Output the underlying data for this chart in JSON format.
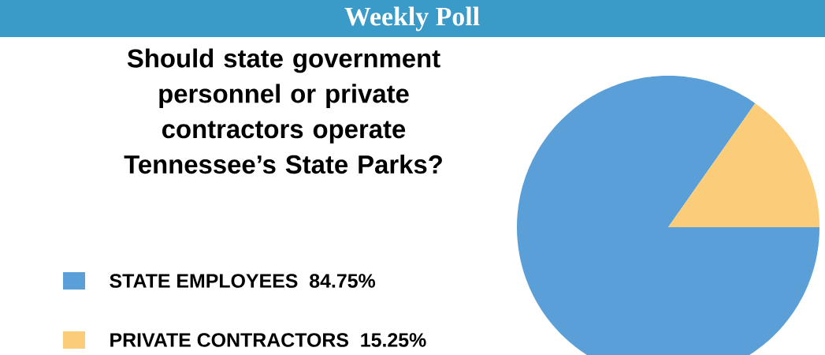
{
  "chart_data": {
    "type": "pie",
    "title": "Weekly Poll",
    "subtitle": "Should state government personnel or private contractors operate Tennessee’s State Parks?",
    "categories": [
      "STATE EMPLOYEES",
      "PRIVATE CONTRACTORS"
    ],
    "values": [
      84.75,
      15.25
    ],
    "value_labels": [
      "84.75%",
      "15.25%"
    ],
    "colors": [
      "#5b9fd8",
      "#fbcd7b"
    ],
    "legend": "left"
  }
}
